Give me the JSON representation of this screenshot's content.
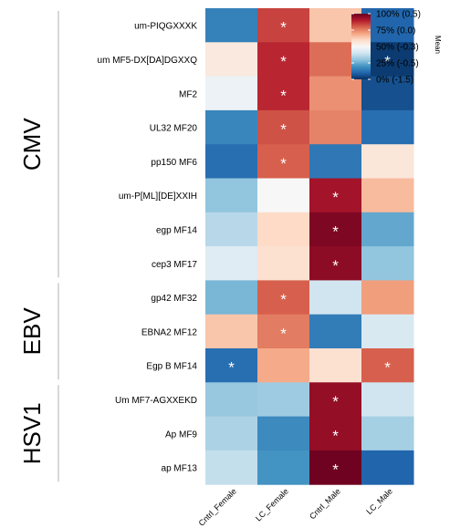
{
  "chart_data": {
    "type": "heatmap",
    "columns": [
      "Cntrl_Female",
      "LC_Female",
      "Cntrl_Male",
      "LC_Male"
    ],
    "rows": [
      "um-PIQGXXXK",
      "um MF5-DX[DA]DGXXQ",
      "MF2",
      "UL32 MF20",
      "pp150 MF6",
      "um-P[ML][DE]XXIH",
      "egp MF14",
      "cep3 MF17",
      "gp42 MF32",
      "EBNA2 MF12",
      "Egp B MF14",
      "Um MF7-AGXXEKD",
      "Ap MF9",
      "ap MF13"
    ],
    "groups": [
      {
        "name": "CMV",
        "rows": 8
      },
      {
        "name": "EBV",
        "rows": 3
      },
      {
        "name": "HSV1",
        "rows": 3
      }
    ],
    "values": [
      [
        0.16,
        0.84,
        0.64,
        0.1
      ],
      [
        0.55,
        0.88,
        0.78,
        0.02
      ],
      [
        0.47,
        0.88,
        0.73,
        0.06
      ],
      [
        0.17,
        0.82,
        0.75,
        0.12
      ],
      [
        0.12,
        0.8,
        0.14,
        0.56
      ],
      [
        0.3,
        0.5,
        0.92,
        0.66
      ],
      [
        0.36,
        0.6,
        0.97,
        0.24
      ],
      [
        0.44,
        0.58,
        0.95,
        0.3
      ],
      [
        0.27,
        0.8,
        0.4,
        0.71
      ],
      [
        0.64,
        0.76,
        0.15,
        0.42
      ],
      [
        0.12,
        0.69,
        0.58,
        0.8
      ],
      [
        0.31,
        0.32,
        0.94,
        0.4
      ],
      [
        0.34,
        0.18,
        0.94,
        0.33
      ],
      [
        0.38,
        0.2,
        0.99,
        0.1
      ]
    ],
    "significant": [
      [
        0,
        1
      ],
      [
        1,
        1
      ],
      [
        1,
        3
      ],
      [
        2,
        1
      ],
      [
        3,
        1
      ],
      [
        4,
        1
      ],
      [
        5,
        2
      ],
      [
        6,
        2
      ],
      [
        7,
        2
      ],
      [
        8,
        1
      ],
      [
        9,
        1
      ],
      [
        10,
        0
      ],
      [
        10,
        3
      ],
      [
        11,
        2
      ],
      [
        12,
        2
      ],
      [
        13,
        2
      ]
    ],
    "significance_marker": "*",
    "legend": {
      "title": "Mean",
      "position": "top-right",
      "ticks": [
        {
          "label": "100% (0.5)",
          "frac": 1.0
        },
        {
          "label": "75% (0.0)",
          "frac": 0.75
        },
        {
          "label": "50% (-0.3)",
          "frac": 0.5
        },
        {
          "label": "25% (-0.5)",
          "frac": 0.25
        },
        {
          "label": "0% (-1.5)",
          "frac": 0.0
        }
      ]
    },
    "colorscale": [
      "#053061",
      "#2166ac",
      "#4393c3",
      "#92c5de",
      "#d1e5f0",
      "#f7f7f7",
      "#fddbc7",
      "#f4a582",
      "#d6604d",
      "#b2182b",
      "#67001f"
    ]
  }
}
